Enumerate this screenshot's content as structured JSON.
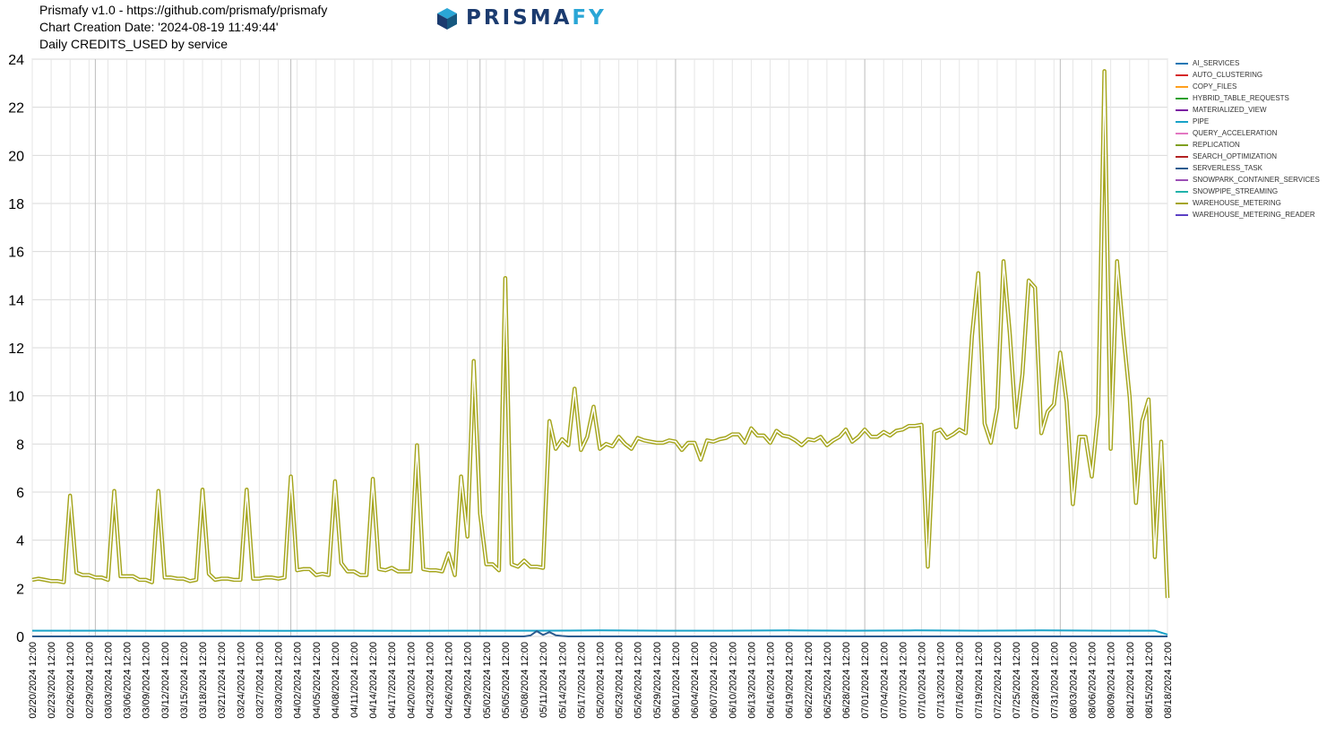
{
  "header": {
    "line1": "Prismafy v1.0 - https://github.com/prismafy/prismafy",
    "line2": "Chart Creation Date: '2024-08-19 11:49:44'",
    "line3": "Daily CREDITS_USED by service"
  },
  "logo": {
    "text_a": "PRISMA",
    "text_b": "FY",
    "icon": "prismafy-cube-logo"
  },
  "chart_data": {
    "type": "line",
    "title": "Daily CREDITS_USED by service",
    "xlabel": "",
    "ylabel": "",
    "ylim": [
      0,
      24
    ],
    "yticks": [
      0,
      2,
      4,
      6,
      8,
      10,
      12,
      14,
      16,
      18,
      20,
      22,
      24
    ],
    "grid": true,
    "legend_position": "right",
    "x_start": "2024-02-20",
    "x_days": 181,
    "x_tick_labels": [
      "02/20/2024 12:00",
      "02/23/2024 12:00",
      "02/26/2024 12:00",
      "02/29/2024 12:00",
      "03/03/2024 12:00",
      "03/06/2024 12:00",
      "03/09/2024 12:00",
      "03/12/2024 12:00",
      "03/15/2024 12:00",
      "03/18/2024 12:00",
      "03/21/2024 12:00",
      "03/24/2024 12:00",
      "03/27/2024 12:00",
      "03/30/2024 12:00",
      "04/02/2024 12:00",
      "04/05/2024 12:00",
      "04/08/2024 12:00",
      "04/11/2024 12:00",
      "04/14/2024 12:00",
      "04/17/2024 12:00",
      "04/20/2024 12:00",
      "04/23/2024 12:00",
      "04/26/2024 12:00",
      "04/29/2024 12:00",
      "05/02/2024 12:00",
      "05/05/2024 12:00",
      "05/08/2024 12:00",
      "05/11/2024 12:00",
      "05/14/2024 12:00",
      "05/17/2024 12:00",
      "05/20/2024 12:00",
      "05/23/2024 12:00",
      "05/26/2024 12:00",
      "05/29/2024 12:00",
      "06/01/2024 12:00",
      "06/04/2024 12:00",
      "06/07/2024 12:00",
      "06/10/2024 12:00",
      "06/13/2024 12:00",
      "06/16/2024 12:00",
      "06/19/2024 12:00",
      "06/22/2024 12:00",
      "06/25/2024 12:00",
      "06/28/2024 12:00",
      "07/01/2024 12:00",
      "07/04/2024 12:00",
      "07/07/2024 12:00",
      "07/10/2024 12:00",
      "07/13/2024 12:00",
      "07/16/2024 12:00",
      "07/19/2024 12:00",
      "07/22/2024 12:00",
      "07/25/2024 12:00",
      "07/28/2024 12:00",
      "07/31/2024 12:00",
      "08/03/2024 12:00",
      "08/06/2024 12:00",
      "08/09/2024 12:00",
      "08/12/2024 12:00",
      "08/15/2024 12:00",
      "08/18/2024 12:00"
    ],
    "series": [
      {
        "name": "AI_SERVICES",
        "color": "#1f77b4",
        "points": []
      },
      {
        "name": "AUTO_CLUSTERING",
        "color": "#d62728",
        "points": []
      },
      {
        "name": "COPY_FILES",
        "color": "#ff9f1c",
        "points": []
      },
      {
        "name": "HYBRID_TABLE_REQUESTS",
        "color": "#2ca02c",
        "points": []
      },
      {
        "name": "MATERIALIZED_VIEW",
        "color": "#7b1fa2",
        "points": []
      },
      {
        "name": "PIPE",
        "color": "#17a2c8",
        "points": [
          [
            0,
            0.24
          ],
          [
            10,
            0.24
          ],
          [
            20,
            0.23
          ],
          [
            30,
            0.24
          ],
          [
            40,
            0.23
          ],
          [
            50,
            0.24
          ],
          [
            60,
            0.23
          ],
          [
            70,
            0.24
          ],
          [
            80,
            0.24
          ],
          [
            90,
            0.25
          ],
          [
            100,
            0.24
          ],
          [
            110,
            0.24
          ],
          [
            120,
            0.25
          ],
          [
            130,
            0.24
          ],
          [
            140,
            0.25
          ],
          [
            150,
            0.24
          ],
          [
            160,
            0.25
          ],
          [
            170,
            0.24
          ],
          [
            178,
            0.24
          ],
          [
            180,
            0.08
          ]
        ]
      },
      {
        "name": "QUERY_ACCELERATION",
        "color": "#e377c2",
        "points": []
      },
      {
        "name": "REPLICATION",
        "color": "#7f9f1f",
        "points": []
      },
      {
        "name": "SEARCH_OPTIMIZATION",
        "color": "#b22222",
        "points": []
      },
      {
        "name": "SERVERLESS_TASK",
        "color": "#2c5c8f",
        "points": [
          [
            0,
            0
          ],
          [
            78,
            0
          ],
          [
            79,
            0.04
          ],
          [
            80,
            0.22
          ],
          [
            81,
            0.06
          ],
          [
            82,
            0.18
          ],
          [
            83,
            0.05
          ],
          [
            84,
            0.02
          ],
          [
            85,
            0
          ],
          [
            180,
            0
          ]
        ]
      },
      {
        "name": "SNOWPARK_CONTAINER_SERVICES",
        "color": "#9c4fb5",
        "points": []
      },
      {
        "name": "SNOWPIPE_STREAMING",
        "color": "#20b2aa",
        "points": []
      },
      {
        "name": "WAREHOUSE_METERING",
        "color": "#a5a51c",
        "points": [
          [
            0,
            2.35
          ],
          [
            1,
            2.4
          ],
          [
            2,
            2.35
          ],
          [
            3,
            2.3
          ],
          [
            4,
            2.3
          ],
          [
            5,
            2.25
          ],
          [
            6,
            5.85
          ],
          [
            7,
            2.65
          ],
          [
            8,
            2.55
          ],
          [
            9,
            2.55
          ],
          [
            10,
            2.45
          ],
          [
            11,
            2.45
          ],
          [
            12,
            2.35
          ],
          [
            13,
            6.05
          ],
          [
            14,
            2.5
          ],
          [
            15,
            2.5
          ],
          [
            16,
            2.5
          ],
          [
            17,
            2.35
          ],
          [
            18,
            2.35
          ],
          [
            19,
            2.25
          ],
          [
            20,
            6.05
          ],
          [
            21,
            2.45
          ],
          [
            22,
            2.45
          ],
          [
            23,
            2.4
          ],
          [
            24,
            2.4
          ],
          [
            25,
            2.3
          ],
          [
            26,
            2.35
          ],
          [
            27,
            6.1
          ],
          [
            28,
            2.6
          ],
          [
            29,
            2.35
          ],
          [
            30,
            2.4
          ],
          [
            31,
            2.4
          ],
          [
            32,
            2.35
          ],
          [
            33,
            2.35
          ],
          [
            34,
            6.1
          ],
          [
            35,
            2.4
          ],
          [
            36,
            2.4
          ],
          [
            37,
            2.45
          ],
          [
            38,
            2.45
          ],
          [
            39,
            2.4
          ],
          [
            40,
            2.45
          ],
          [
            41,
            6.65
          ],
          [
            42,
            2.75
          ],
          [
            43,
            2.8
          ],
          [
            44,
            2.8
          ],
          [
            45,
            2.55
          ],
          [
            46,
            2.6
          ],
          [
            47,
            2.55
          ],
          [
            48,
            6.45
          ],
          [
            49,
            3.05
          ],
          [
            50,
            2.7
          ],
          [
            51,
            2.7
          ],
          [
            52,
            2.55
          ],
          [
            53,
            2.55
          ],
          [
            54,
            6.55
          ],
          [
            55,
            2.8
          ],
          [
            56,
            2.75
          ],
          [
            57,
            2.85
          ],
          [
            58,
            2.7
          ],
          [
            59,
            2.7
          ],
          [
            60,
            2.7
          ],
          [
            61,
            7.95
          ],
          [
            62,
            2.8
          ],
          [
            63,
            2.75
          ],
          [
            64,
            2.75
          ],
          [
            65,
            2.7
          ],
          [
            66,
            3.45
          ],
          [
            67,
            2.55
          ],
          [
            68,
            6.65
          ],
          [
            69,
            4.15
          ],
          [
            70,
            11.45
          ],
          [
            71,
            5.1
          ],
          [
            72,
            3.0
          ],
          [
            73,
            3.0
          ],
          [
            74,
            2.75
          ],
          [
            75,
            14.9
          ],
          [
            76,
            3.0
          ],
          [
            77,
            2.9
          ],
          [
            78,
            3.15
          ],
          [
            79,
            2.9
          ],
          [
            80,
            2.9
          ],
          [
            81,
            2.85
          ],
          [
            82,
            8.95
          ],
          [
            83,
            7.8
          ],
          [
            84,
            8.2
          ],
          [
            85,
            7.95
          ],
          [
            86,
            10.3
          ],
          [
            87,
            7.75
          ],
          [
            88,
            8.3
          ],
          [
            89,
            9.55
          ],
          [
            90,
            7.8
          ],
          [
            91,
            8.0
          ],
          [
            92,
            7.9
          ],
          [
            93,
            8.3
          ],
          [
            94,
            8.0
          ],
          [
            95,
            7.8
          ],
          [
            96,
            8.25
          ],
          [
            97,
            8.15
          ],
          [
            98,
            8.1
          ],
          [
            99,
            8.05
          ],
          [
            100,
            8.05
          ],
          [
            101,
            8.15
          ],
          [
            102,
            8.1
          ],
          [
            103,
            7.75
          ],
          [
            104,
            8.05
          ],
          [
            105,
            8.05
          ],
          [
            106,
            7.35
          ],
          [
            107,
            8.15
          ],
          [
            108,
            8.1
          ],
          [
            109,
            8.2
          ],
          [
            110,
            8.25
          ],
          [
            111,
            8.4
          ],
          [
            112,
            8.4
          ],
          [
            113,
            8.05
          ],
          [
            114,
            8.65
          ],
          [
            115,
            8.35
          ],
          [
            116,
            8.35
          ],
          [
            117,
            8.05
          ],
          [
            118,
            8.55
          ],
          [
            119,
            8.35
          ],
          [
            120,
            8.3
          ],
          [
            121,
            8.15
          ],
          [
            122,
            7.95
          ],
          [
            123,
            8.2
          ],
          [
            124,
            8.15
          ],
          [
            125,
            8.3
          ],
          [
            126,
            7.95
          ],
          [
            127,
            8.15
          ],
          [
            128,
            8.3
          ],
          [
            129,
            8.6
          ],
          [
            130,
            8.1
          ],
          [
            131,
            8.3
          ],
          [
            132,
            8.6
          ],
          [
            133,
            8.3
          ],
          [
            134,
            8.3
          ],
          [
            135,
            8.5
          ],
          [
            136,
            8.35
          ],
          [
            137,
            8.55
          ],
          [
            138,
            8.6
          ],
          [
            139,
            8.75
          ],
          [
            140,
            8.75
          ],
          [
            141,
            8.8
          ],
          [
            142,
            2.9
          ],
          [
            143,
            8.5
          ],
          [
            144,
            8.6
          ],
          [
            145,
            8.25
          ],
          [
            146,
            8.4
          ],
          [
            147,
            8.6
          ],
          [
            148,
            8.45
          ],
          [
            149,
            12.5
          ],
          [
            150,
            15.1
          ],
          [
            151,
            8.85
          ],
          [
            152,
            8.05
          ],
          [
            153,
            9.5
          ],
          [
            154,
            15.6
          ],
          [
            155,
            12.6
          ],
          [
            156,
            8.7
          ],
          [
            157,
            10.9
          ],
          [
            158,
            14.8
          ],
          [
            159,
            14.5
          ],
          [
            160,
            8.45
          ],
          [
            161,
            9.35
          ],
          [
            162,
            9.65
          ],
          [
            163,
            11.8
          ],
          [
            164,
            9.75
          ],
          [
            165,
            5.5
          ],
          [
            166,
            8.3
          ],
          [
            167,
            8.3
          ],
          [
            168,
            6.65
          ],
          [
            169,
            9.25
          ],
          [
            170,
            23.5
          ],
          [
            171,
            7.8
          ],
          [
            172,
            15.6
          ],
          [
            173,
            12.6
          ],
          [
            174,
            9.95
          ],
          [
            175,
            5.55
          ],
          [
            176,
            8.95
          ],
          [
            177,
            9.85
          ],
          [
            178,
            3.3
          ],
          [
            179,
            8.1
          ],
          [
            180,
            1.6
          ]
        ]
      },
      {
        "name": "WAREHOUSE_METERING_READER",
        "color": "#5b3fc4",
        "points": []
      }
    ]
  }
}
